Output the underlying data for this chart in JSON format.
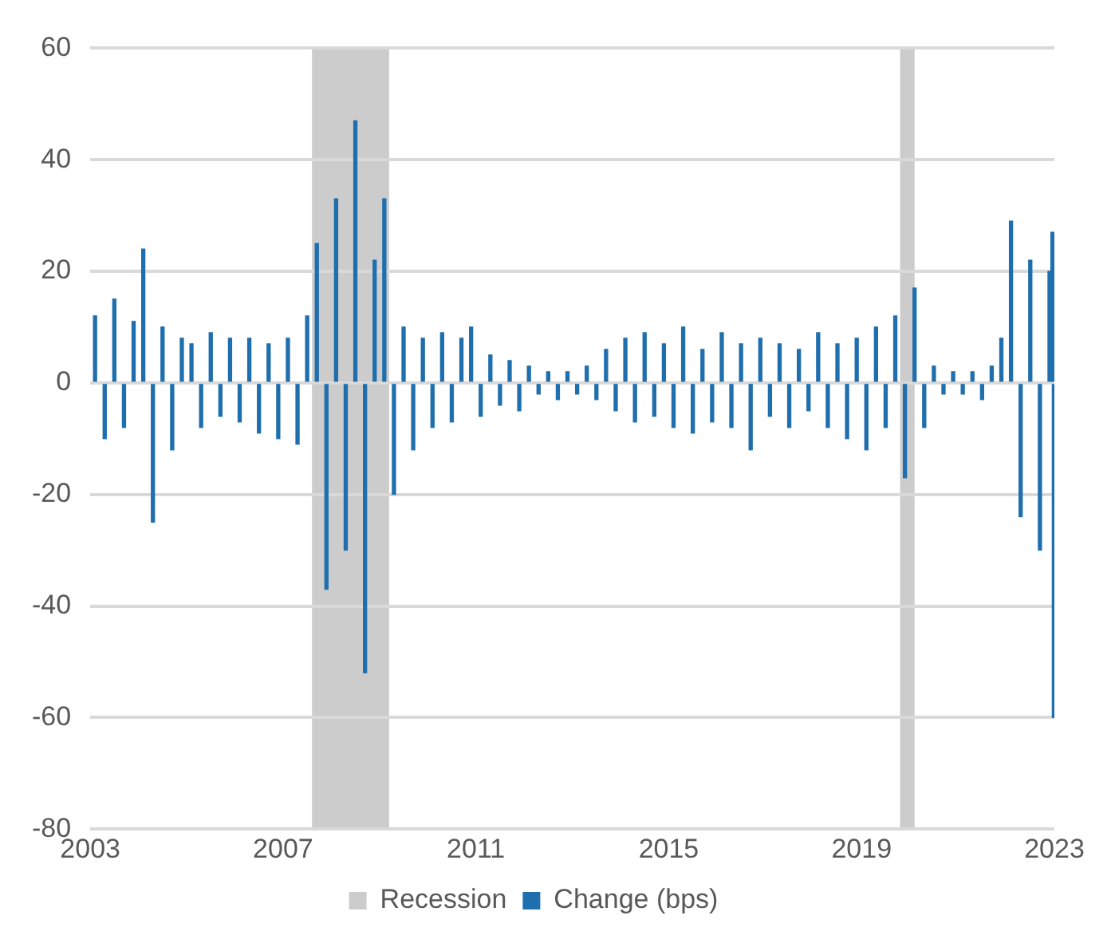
{
  "chart_data": {
    "type": "bar",
    "x": [
      2003.1,
      2003.3,
      2003.5,
      2003.7,
      2003.9,
      2004.1,
      2004.3,
      2004.5,
      2004.7,
      2004.9,
      2005.1,
      2005.3,
      2005.5,
      2005.7,
      2005.9,
      2006.1,
      2006.3,
      2006.5,
      2006.7,
      2006.9,
      2007.1,
      2007.3,
      2007.5,
      2007.7,
      2007.9,
      2008.1,
      2008.3,
      2008.5,
      2008.7,
      2008.9,
      2009.1,
      2009.3,
      2009.5,
      2009.7,
      2009.9,
      2010.1,
      2010.3,
      2010.5,
      2010.7,
      2010.9,
      2011.1,
      2011.3,
      2011.5,
      2011.7,
      2011.9,
      2012.1,
      2012.3,
      2012.5,
      2012.7,
      2012.9,
      2013.1,
      2013.3,
      2013.5,
      2013.7,
      2013.9,
      2014.1,
      2014.3,
      2014.5,
      2014.7,
      2014.9,
      2015.1,
      2015.3,
      2015.5,
      2015.7,
      2015.9,
      2016.1,
      2016.3,
      2016.5,
      2016.7,
      2016.9,
      2017.1,
      2017.3,
      2017.5,
      2017.7,
      2017.9,
      2018.1,
      2018.3,
      2018.5,
      2018.7,
      2018.9,
      2019.1,
      2019.3,
      2019.5,
      2019.7,
      2019.9,
      2020.1,
      2020.3,
      2020.5,
      2020.7,
      2020.9,
      2021.1,
      2021.3,
      2021.5,
      2021.7,
      2021.9,
      2022.1,
      2022.3,
      2022.5,
      2022.7,
      2022.9,
      2022.96,
      2022.99
    ],
    "series": [
      {
        "name": "Change (bps)",
        "color": "#1f6fae",
        "values": [
          12,
          -10,
          15,
          -8,
          11,
          24,
          -25,
          10,
          -12,
          8,
          7,
          -8,
          9,
          -6,
          8,
          -7,
          8,
          -9,
          7,
          -10,
          8,
          -11,
          12,
          25,
          -37,
          33,
          -30,
          47,
          -52,
          22,
          33,
          -20,
          10,
          -12,
          8,
          -8,
          9,
          -7,
          8,
          10,
          -6,
          5,
          -4,
          4,
          -5,
          3,
          -2,
          2,
          -3,
          2,
          -2,
          3,
          -3,
          6,
          -5,
          8,
          -7,
          9,
          -6,
          7,
          -8,
          10,
          -9,
          6,
          -7,
          9,
          -8,
          7,
          -12,
          8,
          -6,
          7,
          -8,
          6,
          -5,
          9,
          -8,
          7,
          -10,
          8,
          -12,
          10,
          -8,
          12,
          -17,
          17,
          -8,
          3,
          -2,
          2,
          -2,
          2,
          -3,
          3,
          8,
          29,
          -24,
          22,
          -30,
          20,
          27,
          -60
        ]
      }
    ],
    "xlim": [
      2003,
      2023
    ],
    "xticks": [
      2003,
      2007,
      2011,
      2015,
      2019,
      2023
    ],
    "ylim": [
      -80,
      60
    ],
    "yticks": [
      -80,
      -60,
      -40,
      -20,
      0,
      20,
      40,
      60
    ],
    "bands": [
      {
        "axis": "x",
        "from": 2007.6,
        "to": 2009.2,
        "label": "Recession",
        "color": "#cccccc"
      },
      {
        "axis": "x",
        "from": 2019.8,
        "to": 2020.1,
        "color": "#cccccc"
      }
    ],
    "grid": "y",
    "legend": "bottom"
  }
}
